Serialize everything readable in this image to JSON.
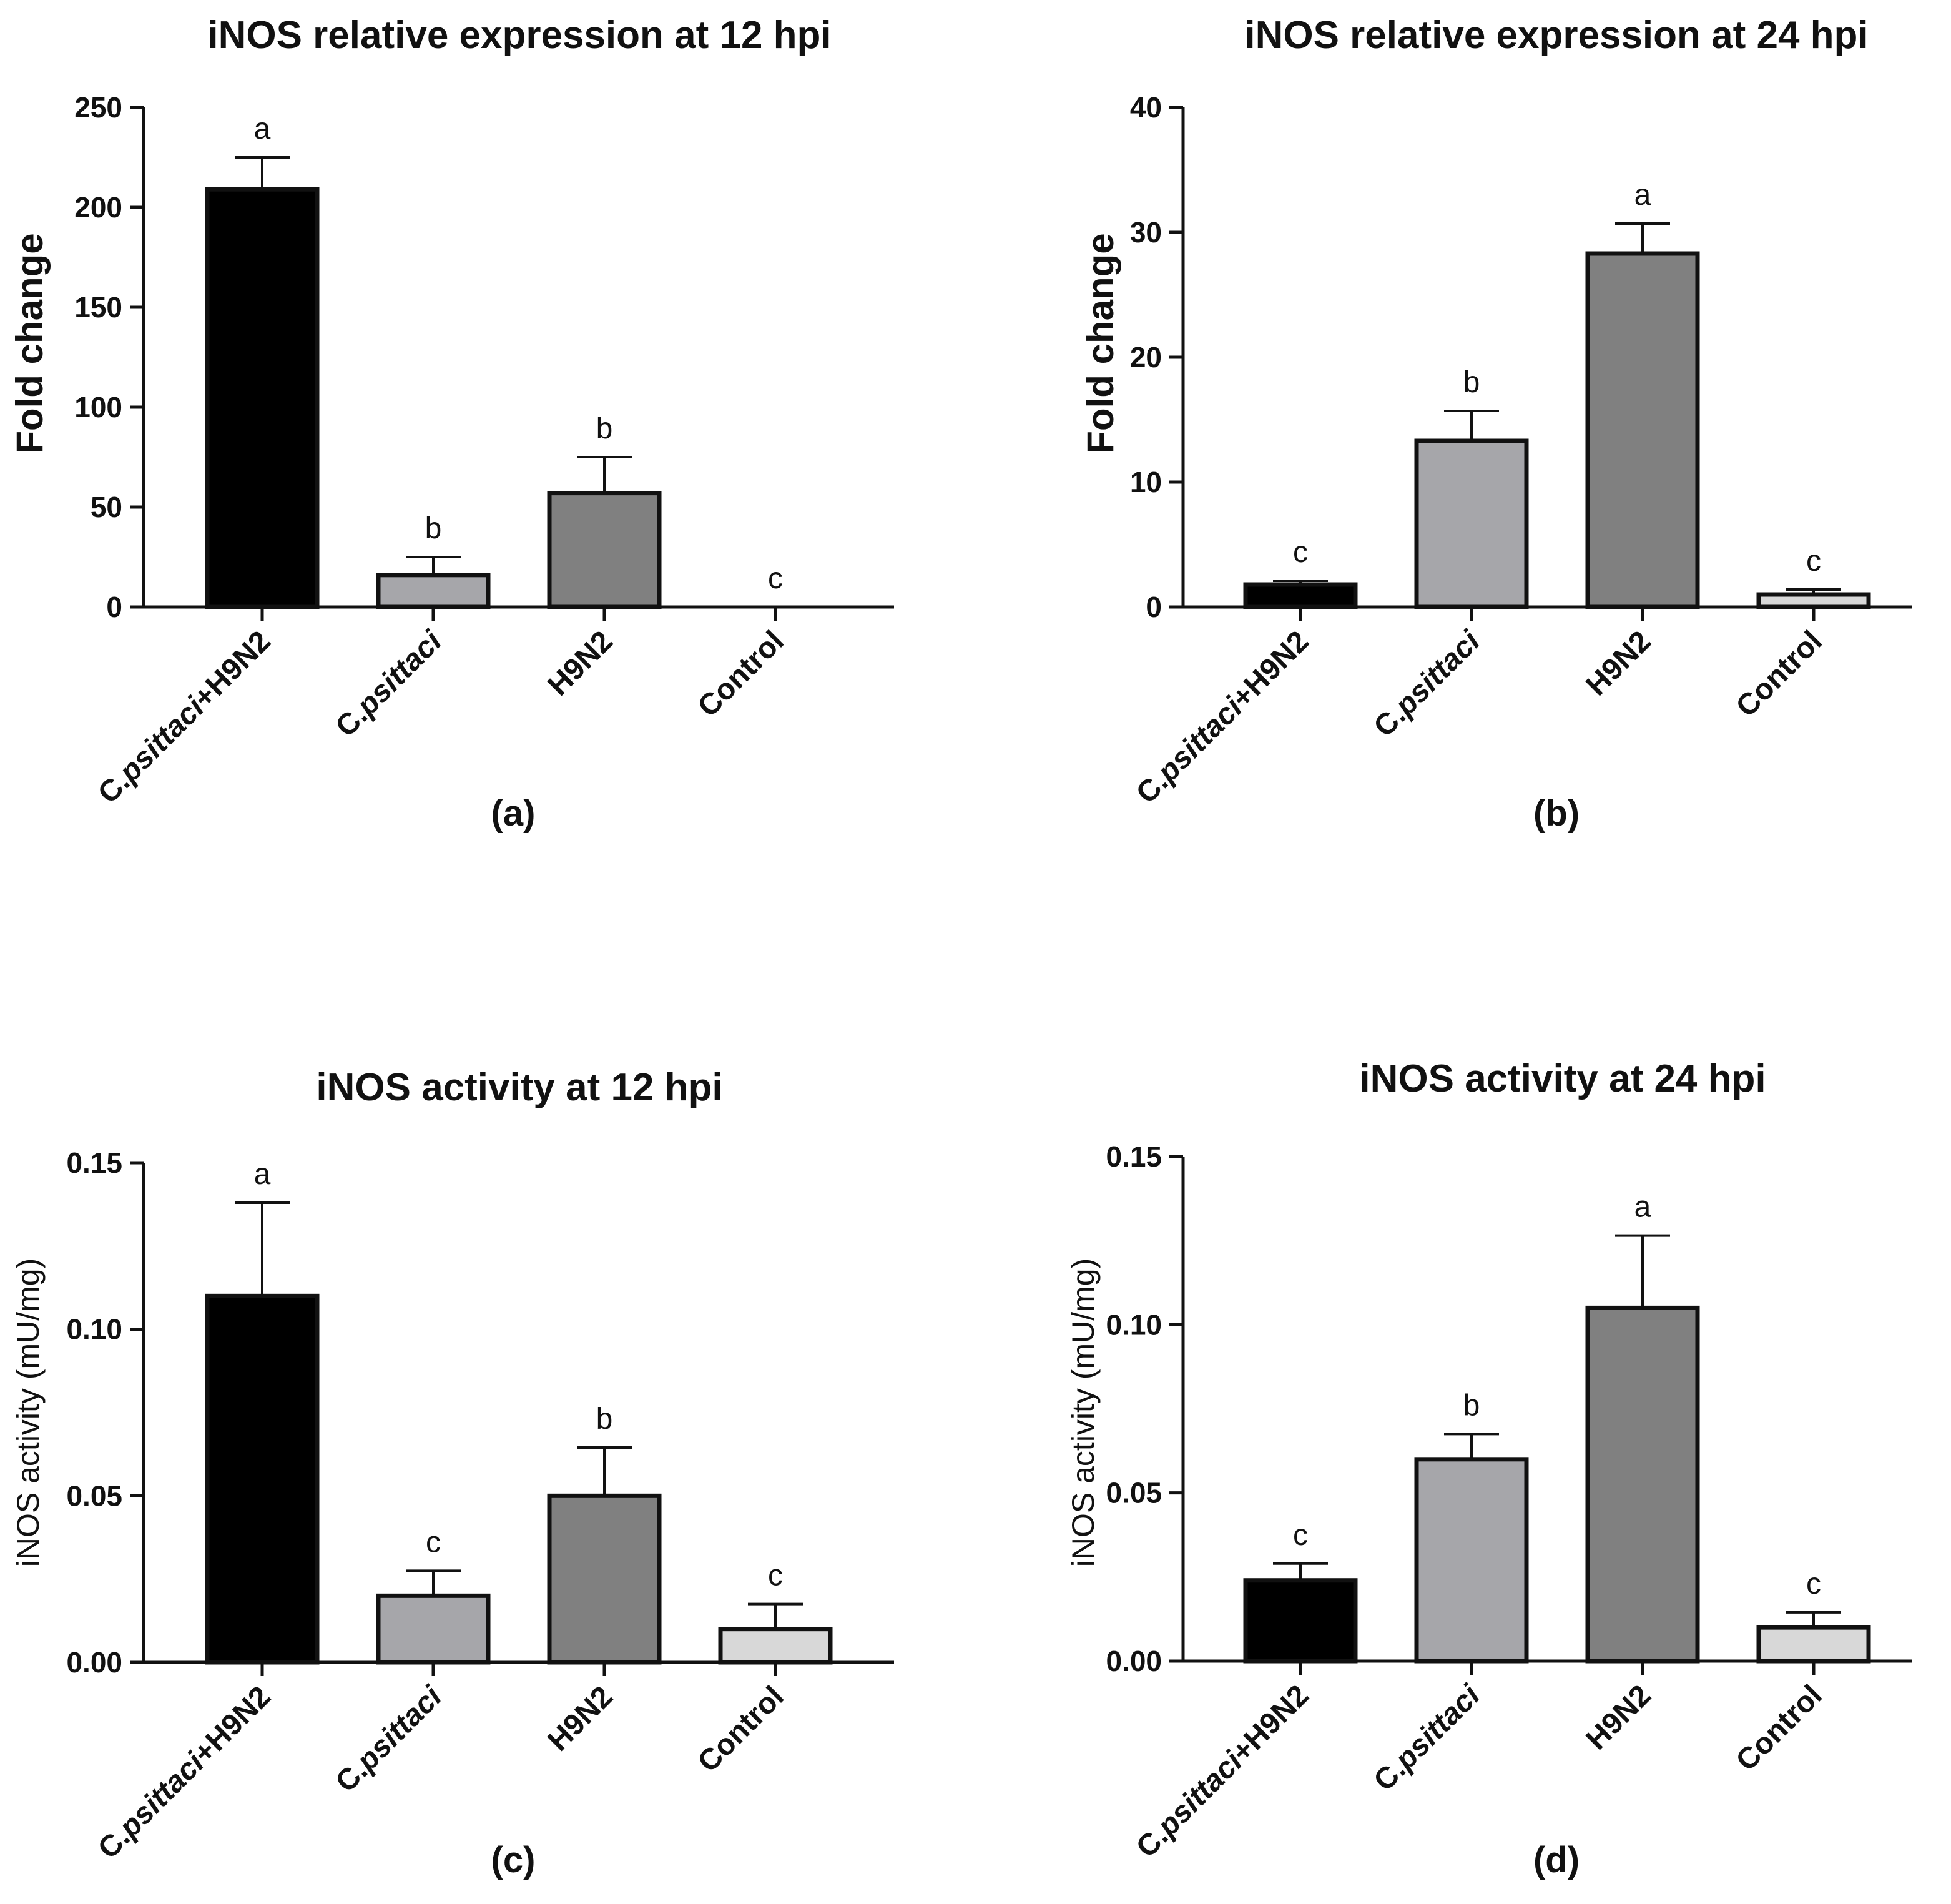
{
  "chart_data": [
    {
      "type": "bar",
      "title": "iNOS relative expression at 12 hpi",
      "ylabel": "Fold change",
      "panel_label": "(a)",
      "categories": [
        "C.psittaci+H9N2",
        "C.psittaci",
        "H9N2",
        "Control"
      ],
      "values": [
        209,
        16,
        57,
        0
      ],
      "errors": [
        16,
        9,
        18,
        0
      ],
      "significance": [
        "a",
        "b",
        "b",
        "c"
      ],
      "colors": [
        "#000000",
        "#a6a6aa",
        "#808080",
        "#d8d8d8"
      ],
      "ylim": [
        0,
        250
      ],
      "yticks": [
        0,
        50,
        100,
        150,
        200,
        250
      ],
      "ytick_labels": [
        "0",
        "50",
        "100",
        "150",
        "200",
        "250"
      ]
    },
    {
      "type": "bar",
      "title": "iNOS relative expression at 24 hpi",
      "ylabel": "Fold change",
      "panel_label": "(b)",
      "categories": [
        "C.psittaci+H9N2",
        "C.psittaci",
        "H9N2",
        "Control"
      ],
      "values": [
        1.8,
        13.3,
        28.3,
        1.0
      ],
      "errors": [
        0.3,
        2.4,
        2.4,
        0.4
      ],
      "significance": [
        "c",
        "b",
        "a",
        "c"
      ],
      "colors": [
        "#000000",
        "#a6a6aa",
        "#808080",
        "#d8d8d8"
      ],
      "ylim": [
        0,
        40
      ],
      "yticks": [
        0,
        10,
        20,
        30,
        40
      ],
      "ytick_labels": [
        "0",
        "10",
        "20",
        "30",
        "40"
      ]
    },
    {
      "type": "bar",
      "title": "iNOS activity at 12 hpi",
      "ylabel": "iNOS activity (mU/mg)",
      "panel_label": "(c)",
      "categories": [
        "C.psittaci+H9N2",
        "C.psittaci",
        "H9N2",
        "Control"
      ],
      "values": [
        0.11,
        0.02,
        0.05,
        0.01
      ],
      "errors": [
        0.028,
        0.0075,
        0.0145,
        0.0075
      ],
      "significance": [
        "a",
        "c",
        "b",
        "c"
      ],
      "colors": [
        "#000000",
        "#a6a6aa",
        "#808080",
        "#d8d8d8"
      ],
      "ylim": [
        0,
        0.15
      ],
      "yticks": [
        0,
        0.05,
        0.1,
        0.15
      ],
      "ytick_labels": [
        "0.00",
        "0.05",
        "0.10",
        "0.15"
      ]
    },
    {
      "type": "bar",
      "title": "iNOS activity at 24 hpi",
      "ylabel": "iNOS activity (mU/mg)",
      "panel_label": "(d)",
      "categories": [
        "C.psittaci+H9N2",
        "C.psittaci",
        "H9N2",
        "Control"
      ],
      "values": [
        0.024,
        0.06,
        0.105,
        0.01
      ],
      "errors": [
        0.005,
        0.0075,
        0.0215,
        0.0045
      ],
      "significance": [
        "c",
        "b",
        "a",
        "c"
      ],
      "colors": [
        "#000000",
        "#a6a6aa",
        "#808080",
        "#d8d8d8"
      ],
      "ylim": [
        0,
        0.15
      ],
      "yticks": [
        0,
        0.05,
        0.1,
        0.15
      ],
      "ytick_labels": [
        "0.00",
        "0.05",
        "0.10",
        "0.15"
      ]
    }
  ]
}
